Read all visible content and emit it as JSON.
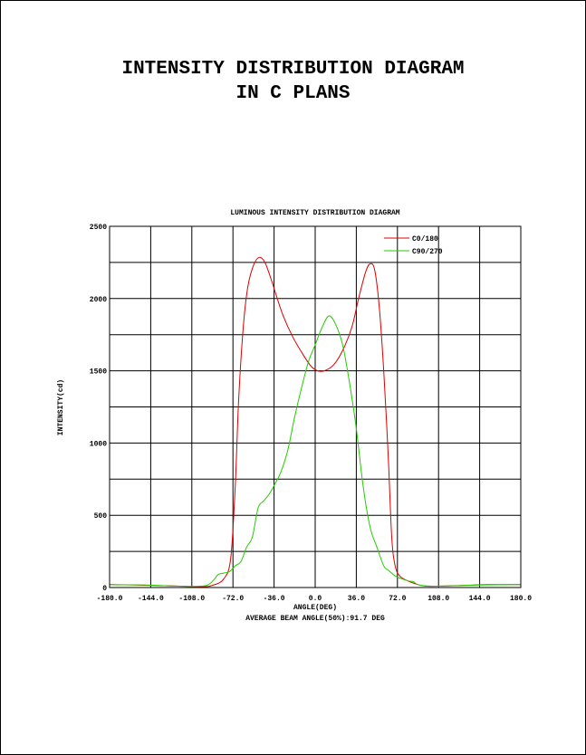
{
  "page": {
    "title_line1": "INTENSITY DISTRIBUTION DIAGRAM",
    "title_line2": "IN C PLANS"
  },
  "chart_data": {
    "type": "line",
    "title": "LUMINOUS INTENSITY DISTRIBUTION DIAGRAM",
    "xlabel": "ANGLE(DEG)",
    "ylabel": "INTENSITY(cd)",
    "note": "AVERAGE BEAM ANGLE(50%):91.7 DEG",
    "xlim": [
      -180,
      180
    ],
    "ylim": [
      0,
      2500
    ],
    "grid": true,
    "legend_position": "top-right",
    "x_ticks": [
      "-180.0",
      "-144.0",
      "-108.0",
      "-72.0",
      "-36.0",
      "0.0",
      "36.0",
      "72.0",
      "108.0",
      "144.0",
      "180.0"
    ],
    "y_ticks": [
      "0",
      "500",
      "1000",
      "1500",
      "2000",
      "2500"
    ],
    "series": [
      {
        "name": "C0/180",
        "color": "#dd0000",
        "points": [
          [
            -180,
            20
          ],
          [
            -150,
            16
          ],
          [
            -120,
            10
          ],
          [
            -100,
            5
          ],
          [
            -90,
            15
          ],
          [
            -80,
            60
          ],
          [
            -74,
            200
          ],
          [
            -70,
            700
          ],
          [
            -67,
            1300
          ],
          [
            -63,
            1800
          ],
          [
            -59,
            2080
          ],
          [
            -54,
            2230
          ],
          [
            -49,
            2285
          ],
          [
            -44,
            2250
          ],
          [
            -38,
            2120
          ],
          [
            -34,
            2020
          ],
          [
            -28,
            1880
          ],
          [
            -20,
            1740
          ],
          [
            -12,
            1630
          ],
          [
            -4,
            1535
          ],
          [
            2,
            1500
          ],
          [
            8,
            1500
          ],
          [
            16,
            1540
          ],
          [
            24,
            1640
          ],
          [
            32,
            1800
          ],
          [
            38,
            2000
          ],
          [
            44,
            2180
          ],
          [
            48,
            2240
          ],
          [
            52,
            2200
          ],
          [
            56,
            1950
          ],
          [
            60,
            1500
          ],
          [
            64,
            900
          ],
          [
            67,
            350
          ],
          [
            70,
            150
          ],
          [
            74,
            80
          ],
          [
            80,
            50
          ],
          [
            88,
            25
          ],
          [
            96,
            10
          ],
          [
            110,
            10
          ],
          [
            130,
            15
          ],
          [
            150,
            20
          ],
          [
            180,
            20
          ]
        ]
      },
      {
        "name": "C90/270",
        "color": "#22cc00",
        "points": [
          [
            -180,
            20
          ],
          [
            -150,
            18
          ],
          [
            -130,
            12
          ],
          [
            -110,
            8
          ],
          [
            -95,
            15
          ],
          [
            -88,
            60
          ],
          [
            -85,
            90
          ],
          [
            -80,
            100
          ],
          [
            -75,
            110
          ],
          [
            -70,
            150
          ],
          [
            -65,
            180
          ],
          [
            -60,
            280
          ],
          [
            -55,
            350
          ],
          [
            -50,
            550
          ],
          [
            -45,
            600
          ],
          [
            -40,
            650
          ],
          [
            -35,
            720
          ],
          [
            -30,
            800
          ],
          [
            -24,
            950
          ],
          [
            -18,
            1180
          ],
          [
            -12,
            1380
          ],
          [
            -6,
            1560
          ],
          [
            0,
            1680
          ],
          [
            6,
            1800
          ],
          [
            12,
            1880
          ],
          [
            18,
            1820
          ],
          [
            24,
            1680
          ],
          [
            30,
            1420
          ],
          [
            36,
            1100
          ],
          [
            42,
            700
          ],
          [
            48,
            420
          ],
          [
            54,
            280
          ],
          [
            60,
            150
          ],
          [
            64,
            120
          ],
          [
            70,
            80
          ],
          [
            76,
            60
          ],
          [
            82,
            45
          ],
          [
            86,
            40
          ],
          [
            90,
            20
          ],
          [
            100,
            10
          ],
          [
            120,
            12
          ],
          [
            150,
            18
          ],
          [
            180,
            20
          ]
        ]
      }
    ]
  }
}
